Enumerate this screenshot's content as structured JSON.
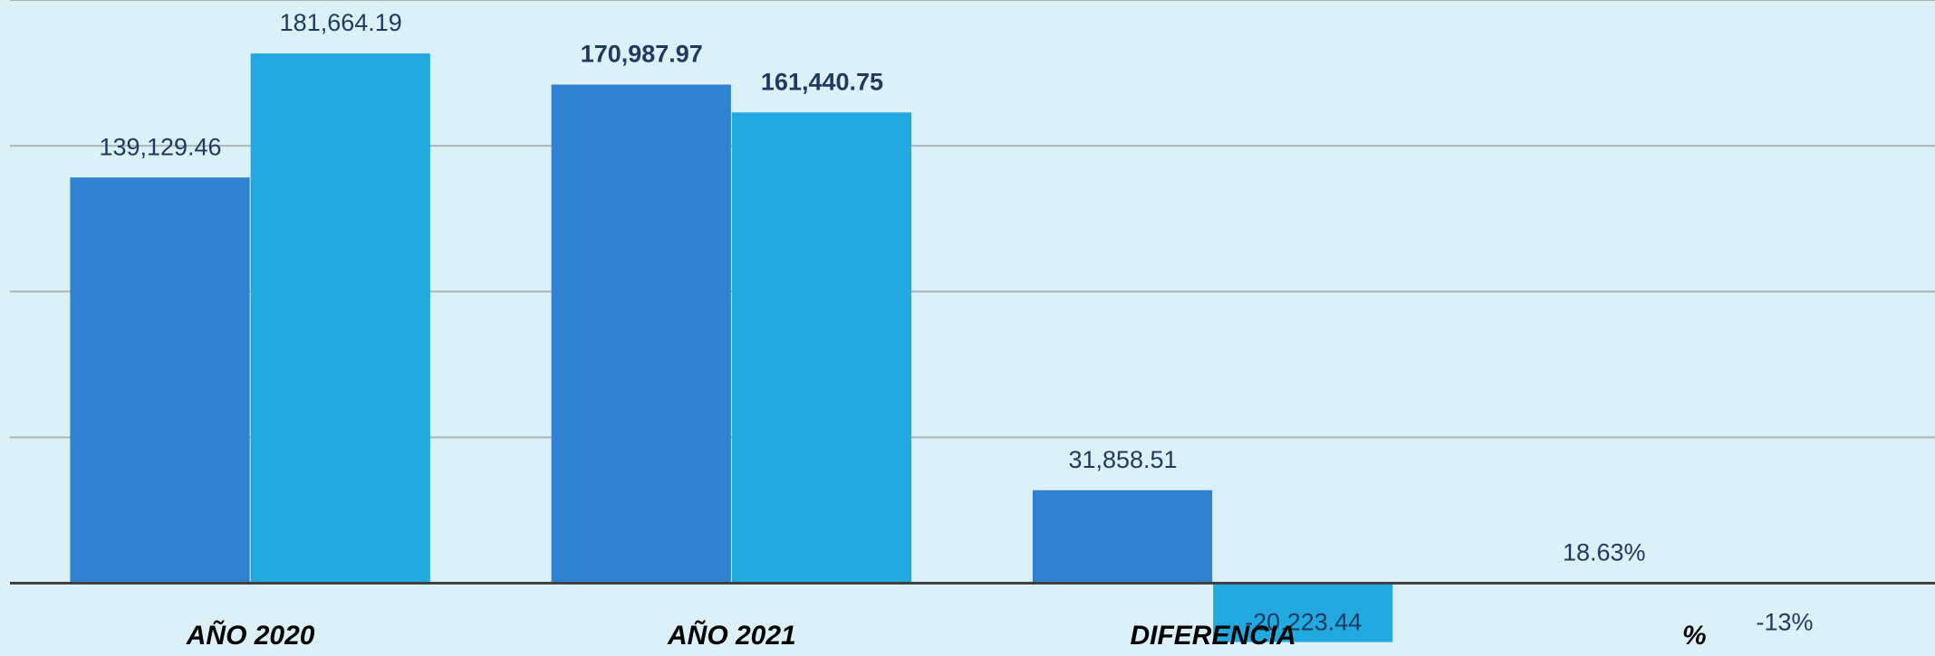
{
  "chart_data": {
    "type": "bar",
    "categories": [
      "AÑO 2020",
      "AÑO 2021",
      "DIFERENCIA",
      "%"
    ],
    "series": [
      {
        "color": "#2e82cf",
        "values": [
          139129.46,
          170987.97,
          31858.51,
          18.63
        ],
        "value_labels": [
          "139,129.46",
          "170,987.97",
          "31,858.51",
          "18.63%"
        ]
      },
      {
        "color": "#22aae0",
        "values": [
          181664.19,
          161440.75,
          -20223.44,
          -13
        ],
        "value_labels": [
          "181,664.19",
          "161,440.75",
          "-20,223.44",
          "-13%"
        ]
      }
    ],
    "ylim": [
      -25000,
      200000
    ],
    "yticks": [
      0,
      50000,
      100000,
      150000,
      200000
    ],
    "grid": true
  }
}
